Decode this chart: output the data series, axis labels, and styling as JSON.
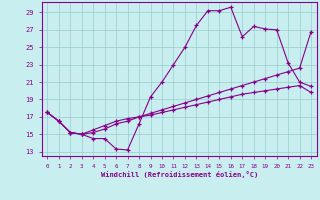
{
  "xlabel": "Windchill (Refroidissement éolien,°C)",
  "bg_color": "#c8eef0",
  "line_color": "#880088",
  "grid_color": "#99cccc",
  "xlim": [
    -0.5,
    23.5
  ],
  "ylim": [
    12.5,
    30.2
  ],
  "xticks": [
    0,
    1,
    2,
    3,
    4,
    5,
    6,
    7,
    8,
    9,
    10,
    11,
    12,
    13,
    14,
    15,
    16,
    17,
    18,
    19,
    20,
    21,
    22,
    23
  ],
  "yticks": [
    13,
    15,
    17,
    19,
    21,
    23,
    25,
    27,
    29
  ],
  "line1_x": [
    0,
    1,
    2,
    3,
    4,
    5,
    6,
    7,
    8,
    9,
    10,
    11,
    12,
    13,
    14,
    15,
    16,
    17,
    18,
    19,
    20,
    21,
    22,
    23
  ],
  "line1_y": [
    17.5,
    16.5,
    15.2,
    15.0,
    14.5,
    14.5,
    13.3,
    13.2,
    16.2,
    19.3,
    21.0,
    23.0,
    25.0,
    27.5,
    29.2,
    29.2,
    29.6,
    26.2,
    27.4,
    27.1,
    27.0,
    23.2,
    21.0,
    20.5
  ],
  "line2_x": [
    0,
    1,
    2,
    3,
    4,
    5,
    6,
    7,
    8,
    9,
    10,
    11,
    12,
    13,
    14,
    15,
    16,
    17,
    18,
    19,
    20,
    21,
    22,
    23
  ],
  "line2_y": [
    17.5,
    16.5,
    15.2,
    15.0,
    15.2,
    15.6,
    16.2,
    16.5,
    17.0,
    17.4,
    17.8,
    18.2,
    18.6,
    19.0,
    19.4,
    19.8,
    20.2,
    20.6,
    21.0,
    21.4,
    21.8,
    22.2,
    22.6,
    26.8
  ],
  "line3_x": [
    0,
    1,
    2,
    3,
    4,
    5,
    6,
    7,
    8,
    9,
    10,
    11,
    12,
    13,
    14,
    15,
    16,
    17,
    18,
    19,
    20,
    21,
    22,
    23
  ],
  "line3_y": [
    17.5,
    16.5,
    15.2,
    15.0,
    15.5,
    16.0,
    16.5,
    16.8,
    17.0,
    17.2,
    17.5,
    17.8,
    18.1,
    18.4,
    18.7,
    19.0,
    19.3,
    19.6,
    19.8,
    20.0,
    20.2,
    20.4,
    20.6,
    19.8
  ]
}
